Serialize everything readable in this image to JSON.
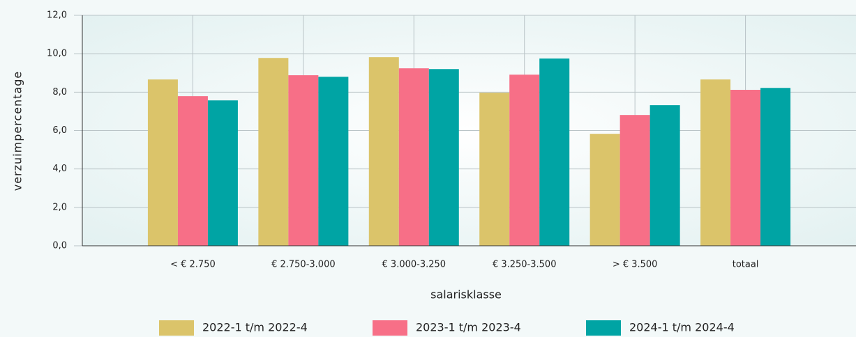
{
  "chart_data": {
    "type": "bar",
    "x_label": "salarisklasse",
    "y_label": "verzuimpercentage",
    "categories": [
      "< € 2.750",
      "€ 2.750-3.000",
      "€ 3.000-3.250",
      "€ 3.250-3.500",
      "> € 3.500",
      "totaal"
    ],
    "series": [
      {
        "name": "2022-1 t/m 2022-4",
        "color": "#dbc46a",
        "values": [
          8.66,
          9.78,
          9.82,
          7.97,
          5.83,
          8.66
        ]
      },
      {
        "name": "2023-1 t/m 2023-4",
        "color": "#f76f87",
        "values": [
          7.79,
          8.88,
          9.24,
          8.91,
          6.81,
          8.12
        ]
      },
      {
        "name": "2024-1 t/m 2024-4",
        "color": "#00a4a4",
        "values": [
          7.57,
          8.8,
          9.2,
          9.75,
          7.32,
          8.22
        ]
      }
    ],
    "ylim": [
      0,
      12
    ],
    "yticks": [
      {
        "value": 0,
        "label": "0,0"
      },
      {
        "value": 2,
        "label": "2,0"
      },
      {
        "value": 4,
        "label": "4,0"
      },
      {
        "value": 6,
        "label": "6,0"
      },
      {
        "value": 8,
        "label": "8,0"
      },
      {
        "value": 10,
        "label": "10,0"
      },
      {
        "value": 12,
        "label": "12,0"
      }
    ],
    "grid": true,
    "legend": "bottom"
  }
}
